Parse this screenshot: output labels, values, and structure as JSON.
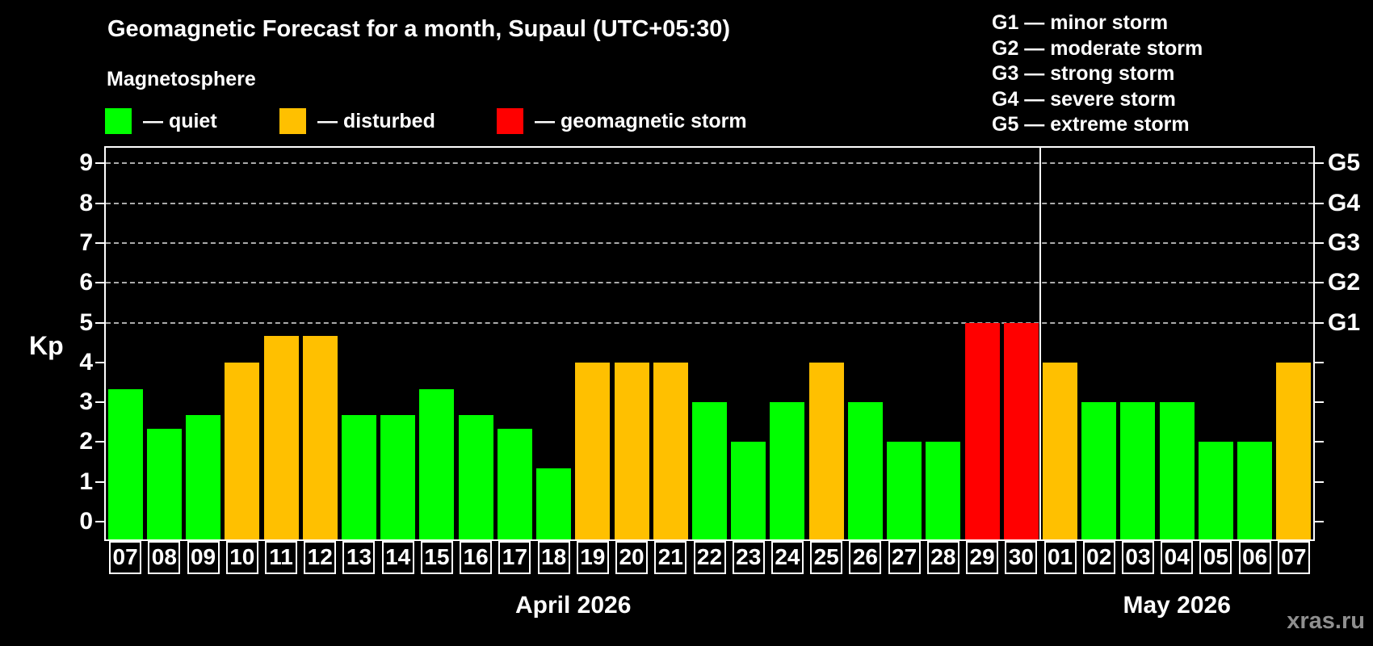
{
  "title": "Geomagnetic Forecast for a month, Supaul (UTC+05:30)",
  "subtitle": "Magnetosphere",
  "legend": {
    "items": [
      {
        "key": "quiet",
        "label": "— quiet",
        "color": "#00FF00"
      },
      {
        "key": "disturbed",
        "label": "— disturbed",
        "color": "#FFC000"
      },
      {
        "key": "storm",
        "label": "— geomagnetic storm",
        "color": "#FF0000"
      }
    ]
  },
  "g_legend": {
    "items": [
      {
        "label": "G1 — minor storm"
      },
      {
        "label": "G2 — moderate storm"
      },
      {
        "label": "G3 — strong storm"
      },
      {
        "label": "G4 — severe storm"
      },
      {
        "label": "G5 — extreme storm"
      }
    ]
  },
  "watermark": "xras.ru",
  "chart_data": {
    "type": "bar",
    "title": "Geomagnetic Forecast for a month, Supaul (UTC+05:30)",
    "ylabel": "Kp",
    "ylim": [
      0,
      9.4
    ],
    "yticks": [
      0,
      1,
      2,
      3,
      4,
      5,
      6,
      7,
      8,
      9
    ],
    "gridlines_kp": [
      5,
      6,
      7,
      8,
      9
    ],
    "right_axis_labels": [
      {
        "label": "G1",
        "kp": 5
      },
      {
        "label": "G2",
        "kp": 6
      },
      {
        "label": "G3",
        "kp": 7
      },
      {
        "label": "G4",
        "kp": 8
      },
      {
        "label": "G5",
        "kp": 9
      }
    ],
    "status_colors": {
      "quiet": "#00FF00",
      "disturbed": "#FFC000",
      "storm": "#FF0000"
    },
    "axis_color": "#FFFFFF",
    "gridline_color": "#ABABAB",
    "months": [
      {
        "label": "April 2026",
        "days": [
          {
            "date": "07",
            "kp": 3.33,
            "status": "quiet"
          },
          {
            "date": "08",
            "kp": 2.33,
            "status": "quiet"
          },
          {
            "date": "09",
            "kp": 2.67,
            "status": "quiet"
          },
          {
            "date": "10",
            "kp": 4.0,
            "status": "disturbed"
          },
          {
            "date": "11",
            "kp": 4.67,
            "status": "disturbed"
          },
          {
            "date": "12",
            "kp": 4.67,
            "status": "disturbed"
          },
          {
            "date": "13",
            "kp": 2.67,
            "status": "quiet"
          },
          {
            "date": "14",
            "kp": 2.67,
            "status": "quiet"
          },
          {
            "date": "15",
            "kp": 3.33,
            "status": "quiet"
          },
          {
            "date": "16",
            "kp": 2.67,
            "status": "quiet"
          },
          {
            "date": "17",
            "kp": 2.33,
            "status": "quiet"
          },
          {
            "date": "18",
            "kp": 1.33,
            "status": "quiet"
          },
          {
            "date": "19",
            "kp": 4.0,
            "status": "disturbed"
          },
          {
            "date": "20",
            "kp": 4.0,
            "status": "disturbed"
          },
          {
            "date": "21",
            "kp": 4.0,
            "status": "disturbed"
          },
          {
            "date": "22",
            "kp": 3.0,
            "status": "quiet"
          },
          {
            "date": "23",
            "kp": 2.0,
            "status": "quiet"
          },
          {
            "date": "24",
            "kp": 3.0,
            "status": "quiet"
          },
          {
            "date": "25",
            "kp": 4.0,
            "status": "disturbed"
          },
          {
            "date": "26",
            "kp": 3.0,
            "status": "quiet"
          },
          {
            "date": "27",
            "kp": 2.0,
            "status": "quiet"
          },
          {
            "date": "28",
            "kp": 2.0,
            "status": "quiet"
          },
          {
            "date": "29",
            "kp": 5.0,
            "status": "storm"
          },
          {
            "date": "30",
            "kp": 5.0,
            "status": "storm"
          }
        ]
      },
      {
        "label": "May 2026",
        "days": [
          {
            "date": "01",
            "kp": 4.0,
            "status": "disturbed"
          },
          {
            "date": "02",
            "kp": 3.0,
            "status": "quiet"
          },
          {
            "date": "03",
            "kp": 3.0,
            "status": "quiet"
          },
          {
            "date": "04",
            "kp": 3.0,
            "status": "quiet"
          },
          {
            "date": "05",
            "kp": 2.0,
            "status": "quiet"
          },
          {
            "date": "06",
            "kp": 2.0,
            "status": "quiet"
          },
          {
            "date": "07",
            "kp": 4.0,
            "status": "disturbed"
          }
        ]
      }
    ]
  }
}
